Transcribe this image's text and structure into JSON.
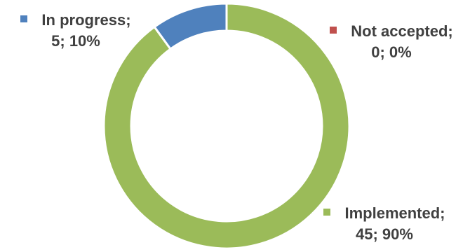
{
  "chart_data": {
    "type": "pie",
    "variant": "doughnut",
    "slices": [
      {
        "category": "In progress",
        "value": 5,
        "percent": "10%",
        "color": "#4f81bd",
        "label_line1": "In progress;",
        "label_line2": "5; 10%"
      },
      {
        "category": "Not accepted",
        "value": 0,
        "percent": "0%",
        "color": "#c0504d",
        "label_line1": "Not accepted;",
        "label_line2": "0; 0%"
      },
      {
        "category": "Implemented",
        "value": 45,
        "percent": "90%",
        "color": "#9bbb59",
        "label_line1": "Implemented;",
        "label_line2": "45; 90%"
      }
    ],
    "title": "",
    "legend": "none"
  }
}
